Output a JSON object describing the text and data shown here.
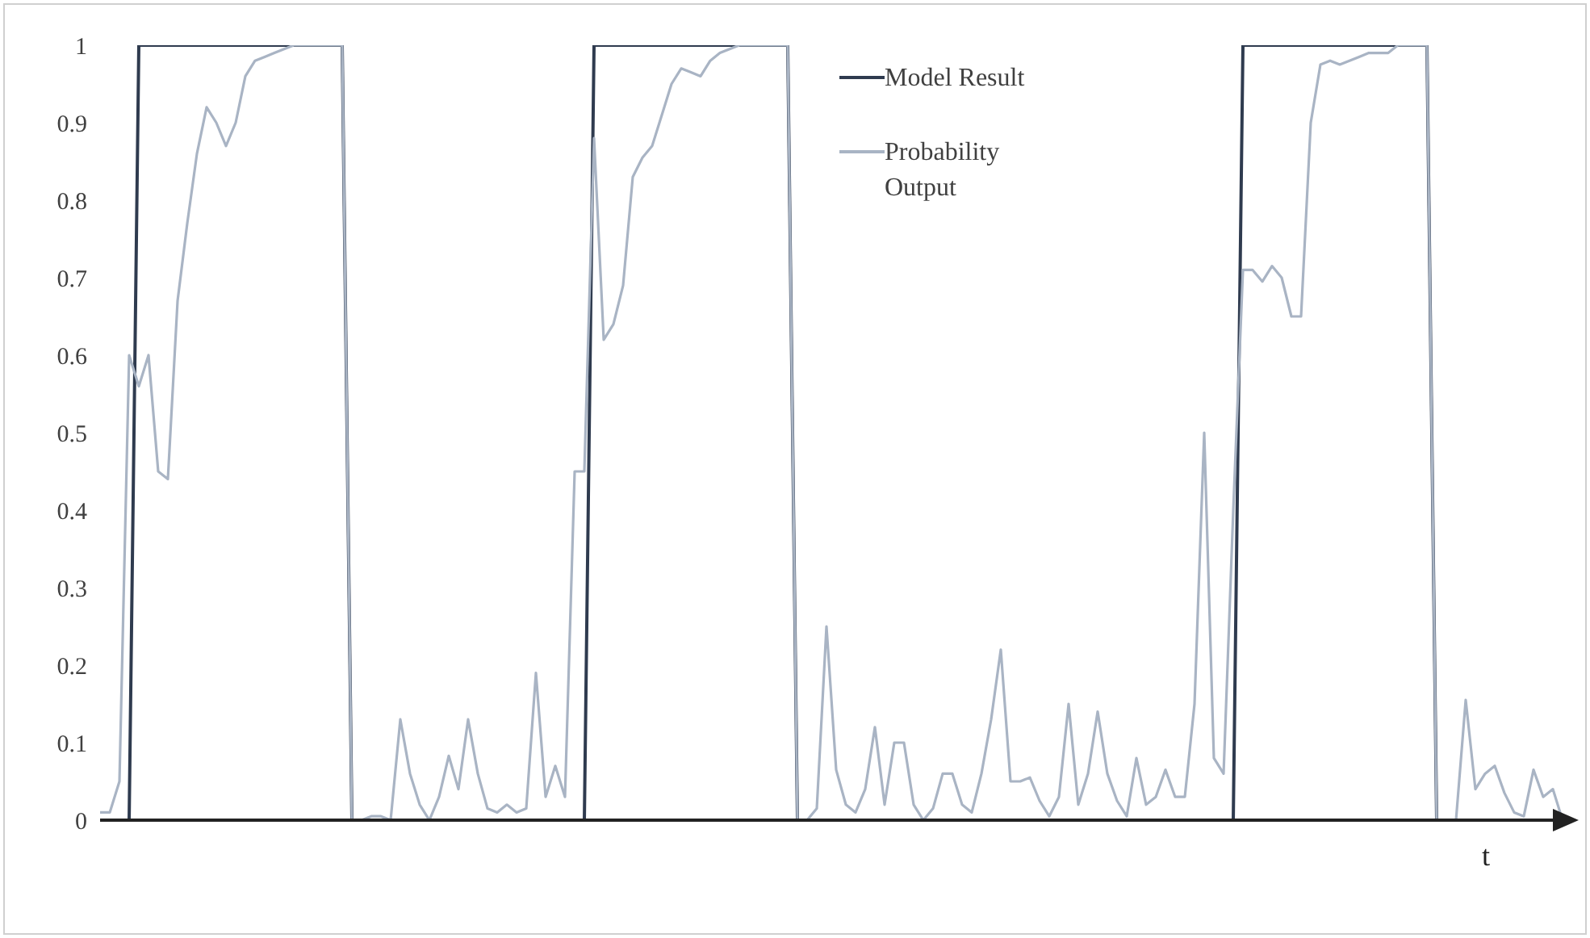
{
  "chart_data": {
    "type": "line",
    "xlabel": "t",
    "categories": [
      null,
      null,
      null,
      null,
      null,
      null,
      null,
      null,
      null,
      null,
      null,
      null,
      null,
      null,
      null,
      null,
      null,
      null,
      null,
      null,
      null,
      null,
      null,
      null,
      null,
      null,
      null,
      null,
      null,
      null,
      null,
      null,
      null,
      null,
      null,
      null,
      null,
      null,
      null,
      null,
      null,
      null,
      null,
      null,
      null,
      null,
      null,
      null,
      null,
      null,
      null,
      null,
      null,
      null,
      null,
      null,
      null,
      null,
      null,
      null,
      null,
      null,
      null,
      null,
      null,
      null,
      null,
      null,
      null,
      null,
      null,
      null,
      null,
      null,
      null,
      null,
      null,
      null,
      null,
      null,
      null,
      null,
      null,
      null,
      null,
      null,
      null,
      null,
      null,
      null,
      null,
      null,
      null,
      null,
      null,
      null,
      null,
      null,
      null,
      null,
      null,
      null,
      null,
      null,
      null,
      null,
      null,
      null,
      null,
      null,
      null,
      null,
      null,
      null,
      null,
      null,
      null,
      null,
      null,
      null,
      null,
      null,
      null,
      null,
      null,
      null,
      null,
      null,
      null,
      null,
      null,
      null,
      null,
      null,
      null,
      null,
      null,
      null,
      null,
      null,
      null,
      null,
      null,
      null,
      null,
      null,
      null,
      null,
      null,
      null,
      null,
      null
    ],
    "series": [
      {
        "name": "Model Result",
        "color": "#2f3b4f",
        "values": [
          0,
          0,
          0,
          0,
          1,
          1,
          1,
          1,
          1,
          1,
          1,
          1,
          1,
          1,
          1,
          1,
          1,
          1,
          1,
          1,
          1,
          1,
          1,
          1,
          1,
          1,
          0,
          0,
          0,
          0,
          0,
          0,
          0,
          0,
          0,
          0,
          0,
          0,
          0,
          0,
          0,
          0,
          0,
          0,
          0,
          0,
          0,
          0,
          0,
          0,
          0,
          1,
          1,
          1,
          1,
          1,
          1,
          1,
          1,
          1,
          1,
          1,
          1,
          1,
          1,
          1,
          1,
          1,
          1,
          1,
          1,
          1,
          0,
          0,
          0,
          0,
          0,
          0,
          0,
          0,
          0,
          0,
          0,
          0,
          0,
          0,
          0,
          0,
          0,
          0,
          0,
          0,
          0,
          0,
          0,
          0,
          0,
          0,
          0,
          0,
          0,
          0,
          0,
          0,
          0,
          0,
          0,
          0,
          0,
          0,
          0,
          0,
          0,
          0,
          0,
          0,
          0,
          0,
          1,
          1,
          1,
          1,
          1,
          1,
          1,
          1,
          1,
          1,
          1,
          1,
          1,
          1,
          1,
          1,
          1,
          1,
          1,
          1,
          0,
          0,
          0,
          0,
          0,
          0,
          0,
          0,
          0,
          0,
          0,
          0,
          0,
          0
        ]
      },
      {
        "name": "Probability Output",
        "color": "#a9b4c4",
        "values": [
          0.01,
          0.01,
          0.05,
          0.6,
          0.56,
          0.6,
          0.45,
          0.44,
          0.67,
          0.77,
          0.86,
          0.92,
          0.9,
          0.87,
          0.9,
          0.96,
          0.98,
          0.985,
          0.99,
          0.995,
          1,
          1,
          1,
          1,
          1,
          1,
          0,
          0,
          0.005,
          0.005,
          0,
          0.13,
          0.06,
          0.02,
          0,
          0.03,
          0.083,
          0.04,
          0.13,
          0.06,
          0.015,
          0.01,
          0.02,
          0.01,
          0.015,
          0.19,
          0.03,
          0.07,
          0.03,
          0.45,
          0.45,
          0.88,
          0.62,
          0.64,
          0.69,
          0.83,
          0.855,
          0.87,
          0.91,
          0.95,
          0.97,
          0.965,
          0.96,
          0.98,
          0.99,
          0.995,
          1,
          1,
          1,
          1,
          1,
          1,
          0,
          0,
          0.015,
          0.25,
          0.065,
          0.02,
          0.01,
          0.04,
          0.12,
          0.02,
          0.1,
          0.1,
          0.02,
          0,
          0.015,
          0.06,
          0.06,
          0.02,
          0.01,
          0.06,
          0.13,
          0.22,
          0.05,
          0.05,
          0.055,
          0.025,
          0.005,
          0.03,
          0.15,
          0.02,
          0.06,
          0.14,
          0.06,
          0.025,
          0.005,
          0.08,
          0.02,
          0.03,
          0.065,
          0.03,
          0.03,
          0.15,
          0.5,
          0.08,
          0.06,
          0.4,
          0.71,
          0.71,
          0.695,
          0.715,
          0.7,
          0.65,
          0.65,
          0.9,
          0.975,
          0.98,
          0.975,
          0.98,
          0.985,
          0.99,
          0.99,
          0.99,
          1,
          1,
          1,
          1,
          0,
          0,
          0,
          0.155,
          0.04,
          0.06,
          0.07,
          0.035,
          0.01,
          0.005,
          0.065,
          0.03,
          0.04,
          0
        ]
      }
    ],
    "ylim": [
      0,
      1
    ],
    "yticks": [
      0,
      0.1,
      0.2,
      0.3,
      0.4,
      0.5,
      0.6,
      0.7,
      0.8,
      0.9,
      1
    ],
    "tick_labels": "y",
    "grid": false,
    "legend": "top",
    "marker": "none",
    "line_style": "solid"
  }
}
